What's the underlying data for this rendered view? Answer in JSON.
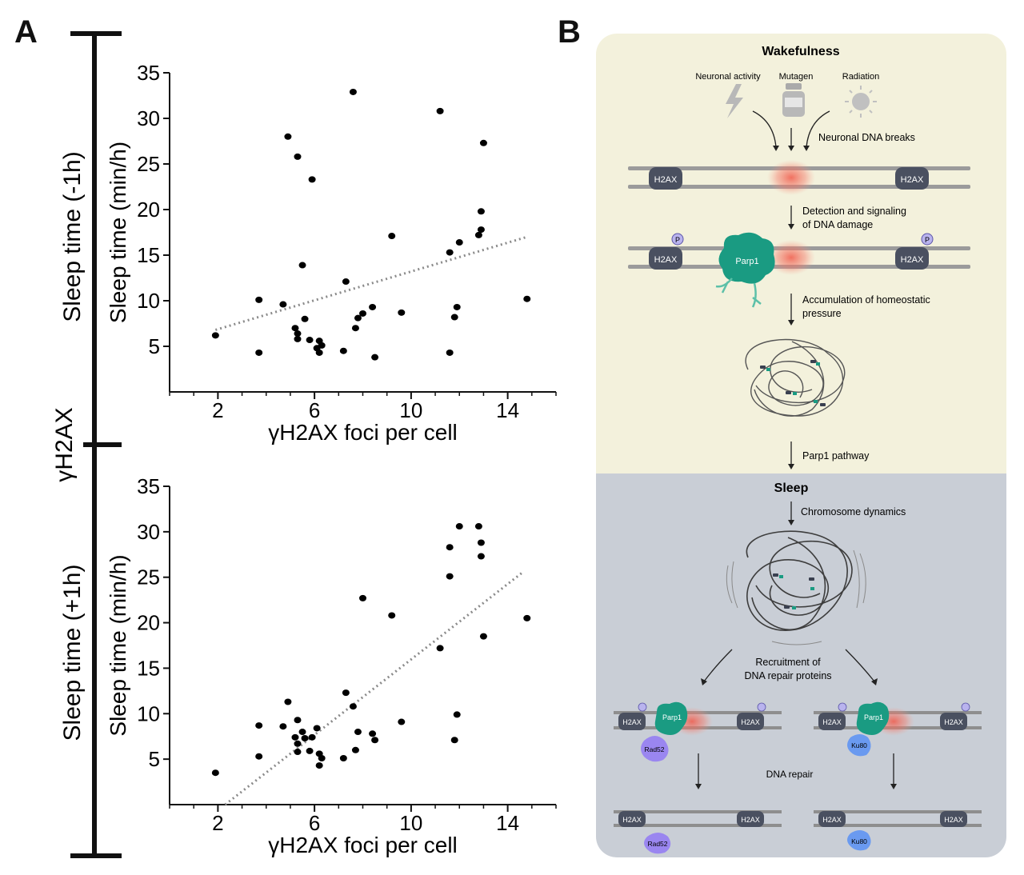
{
  "panel_a": {
    "letter": "A",
    "group_label": "γH2AX",
    "top_row_label": "Sleep time (-1h)",
    "bottom_row_label": "Sleep time (+1h)"
  },
  "chart_data": [
    {
      "type": "scatter",
      "xlabel": "γH2AX foci per cell",
      "ylabel": "Sleep time (min/h)",
      "xticks": [
        2,
        6,
        10,
        14
      ],
      "yticks": [
        5,
        10,
        15,
        20,
        25,
        30,
        35
      ],
      "xlim": [
        0,
        16
      ],
      "ylim": [
        0,
        35
      ],
      "grid": false,
      "trendline": {
        "style": "dotted",
        "x": [
          1.9,
          14.8
        ],
        "y": [
          6.8,
          17.0
        ]
      },
      "points": [
        [
          1.9,
          6.2
        ],
        [
          3.7,
          10.1
        ],
        [
          3.7,
          4.3
        ],
        [
          4.7,
          9.6
        ],
        [
          4.9,
          28.0
        ],
        [
          5.2,
          7.0
        ],
        [
          5.3,
          25.8
        ],
        [
          5.3,
          6.4
        ],
        [
          5.3,
          5.8
        ],
        [
          5.5,
          13.9
        ],
        [
          5.6,
          8.0
        ],
        [
          5.8,
          5.7
        ],
        [
          5.9,
          23.3
        ],
        [
          6.1,
          4.8
        ],
        [
          6.2,
          5.6
        ],
        [
          6.2,
          4.3
        ],
        [
          6.3,
          5.1
        ],
        [
          7.2,
          4.5
        ],
        [
          7.3,
          12.1
        ],
        [
          7.6,
          32.9
        ],
        [
          7.7,
          7.0
        ],
        [
          7.8,
          8.1
        ],
        [
          8.0,
          8.6
        ],
        [
          8.4,
          9.3
        ],
        [
          8.5,
          3.8
        ],
        [
          9.2,
          17.1
        ],
        [
          9.6,
          8.7
        ],
        [
          11.2,
          30.8
        ],
        [
          11.6,
          4.3
        ],
        [
          11.6,
          15.3
        ],
        [
          11.8,
          8.2
        ],
        [
          11.9,
          9.3
        ],
        [
          12.0,
          16.4
        ],
        [
          12.8,
          17.2
        ],
        [
          12.9,
          17.8
        ],
        [
          12.9,
          19.8
        ],
        [
          13.0,
          27.3
        ],
        [
          14.8,
          10.2
        ]
      ]
    },
    {
      "type": "scatter",
      "xlabel": "γH2AX foci per cell",
      "ylabel": "Sleep time (min/h)",
      "xticks": [
        2,
        6,
        10,
        14
      ],
      "yticks": [
        5,
        10,
        15,
        20,
        25,
        30,
        35
      ],
      "xlim": [
        0,
        16
      ],
      "ylim": [
        0,
        35
      ],
      "grid": false,
      "trendline": {
        "style": "dotted",
        "x": [
          2.3,
          14.6
        ],
        "y": [
          0.0,
          25.5
        ]
      },
      "points": [
        [
          1.9,
          3.5
        ],
        [
          3.7,
          8.7
        ],
        [
          3.7,
          5.3
        ],
        [
          4.7,
          8.6
        ],
        [
          4.9,
          11.3
        ],
        [
          5.2,
          7.4
        ],
        [
          5.3,
          9.3
        ],
        [
          5.3,
          6.7
        ],
        [
          5.3,
          5.8
        ],
        [
          5.5,
          8.0
        ],
        [
          5.6,
          7.3
        ],
        [
          5.8,
          5.9
        ],
        [
          5.9,
          7.4
        ],
        [
          6.1,
          8.4
        ],
        [
          6.2,
          5.6
        ],
        [
          6.2,
          4.3
        ],
        [
          6.3,
          5.1
        ],
        [
          7.2,
          5.1
        ],
        [
          7.3,
          12.3
        ],
        [
          7.6,
          10.8
        ],
        [
          7.7,
          6.0
        ],
        [
          7.8,
          8.0
        ],
        [
          8.0,
          22.7
        ],
        [
          8.4,
          7.8
        ],
        [
          8.5,
          7.1
        ],
        [
          9.2,
          20.8
        ],
        [
          9.6,
          9.1
        ],
        [
          11.2,
          17.2
        ],
        [
          11.6,
          28.3
        ],
        [
          11.6,
          25.1
        ],
        [
          11.8,
          7.1
        ],
        [
          11.9,
          9.9
        ],
        [
          12.0,
          30.6
        ],
        [
          12.8,
          30.6
        ],
        [
          12.9,
          28.8
        ],
        [
          12.9,
          27.3
        ],
        [
          13.0,
          18.5
        ],
        [
          14.8,
          20.5
        ]
      ]
    }
  ],
  "panel_b": {
    "letter": "B",
    "colors": {
      "wake_bg": "#f3f1dc",
      "sleep_bg": "#c9ced6",
      "parp1": "#1a9b82",
      "damage": "#f05a4a",
      "repair_protein": "#9a86f0",
      "ku80": "#6a9af0"
    },
    "wake_title": "Wakefulness",
    "sources": [
      "Neuronal activity",
      "Mutagen",
      "Radiation"
    ],
    "source_icons": [
      "lightning-icon",
      "bottle-icon",
      "sun-icon"
    ],
    "neuronal_breaks": "Neuronal DNA breaks",
    "detection_line1": "Detection and signaling",
    "detection_line2": "of DNA damage",
    "accumulation_line1": "Accumulation of homeostatic",
    "accumulation_line2": "pressure",
    "parp1_pathway": "Parp1 pathway",
    "sleep_title": "Sleep",
    "chromosome_dynamics": "Chromosome dynamics",
    "recruitment_line1": "Recruitment of",
    "recruitment_line2": "DNA repair proteins",
    "dna_repair": "DNA repair",
    "h2ax": "H2AX",
    "parp1": "Parp1",
    "phospho": "P",
    "rad52": "Rad52",
    "ku80": "Ku80"
  }
}
